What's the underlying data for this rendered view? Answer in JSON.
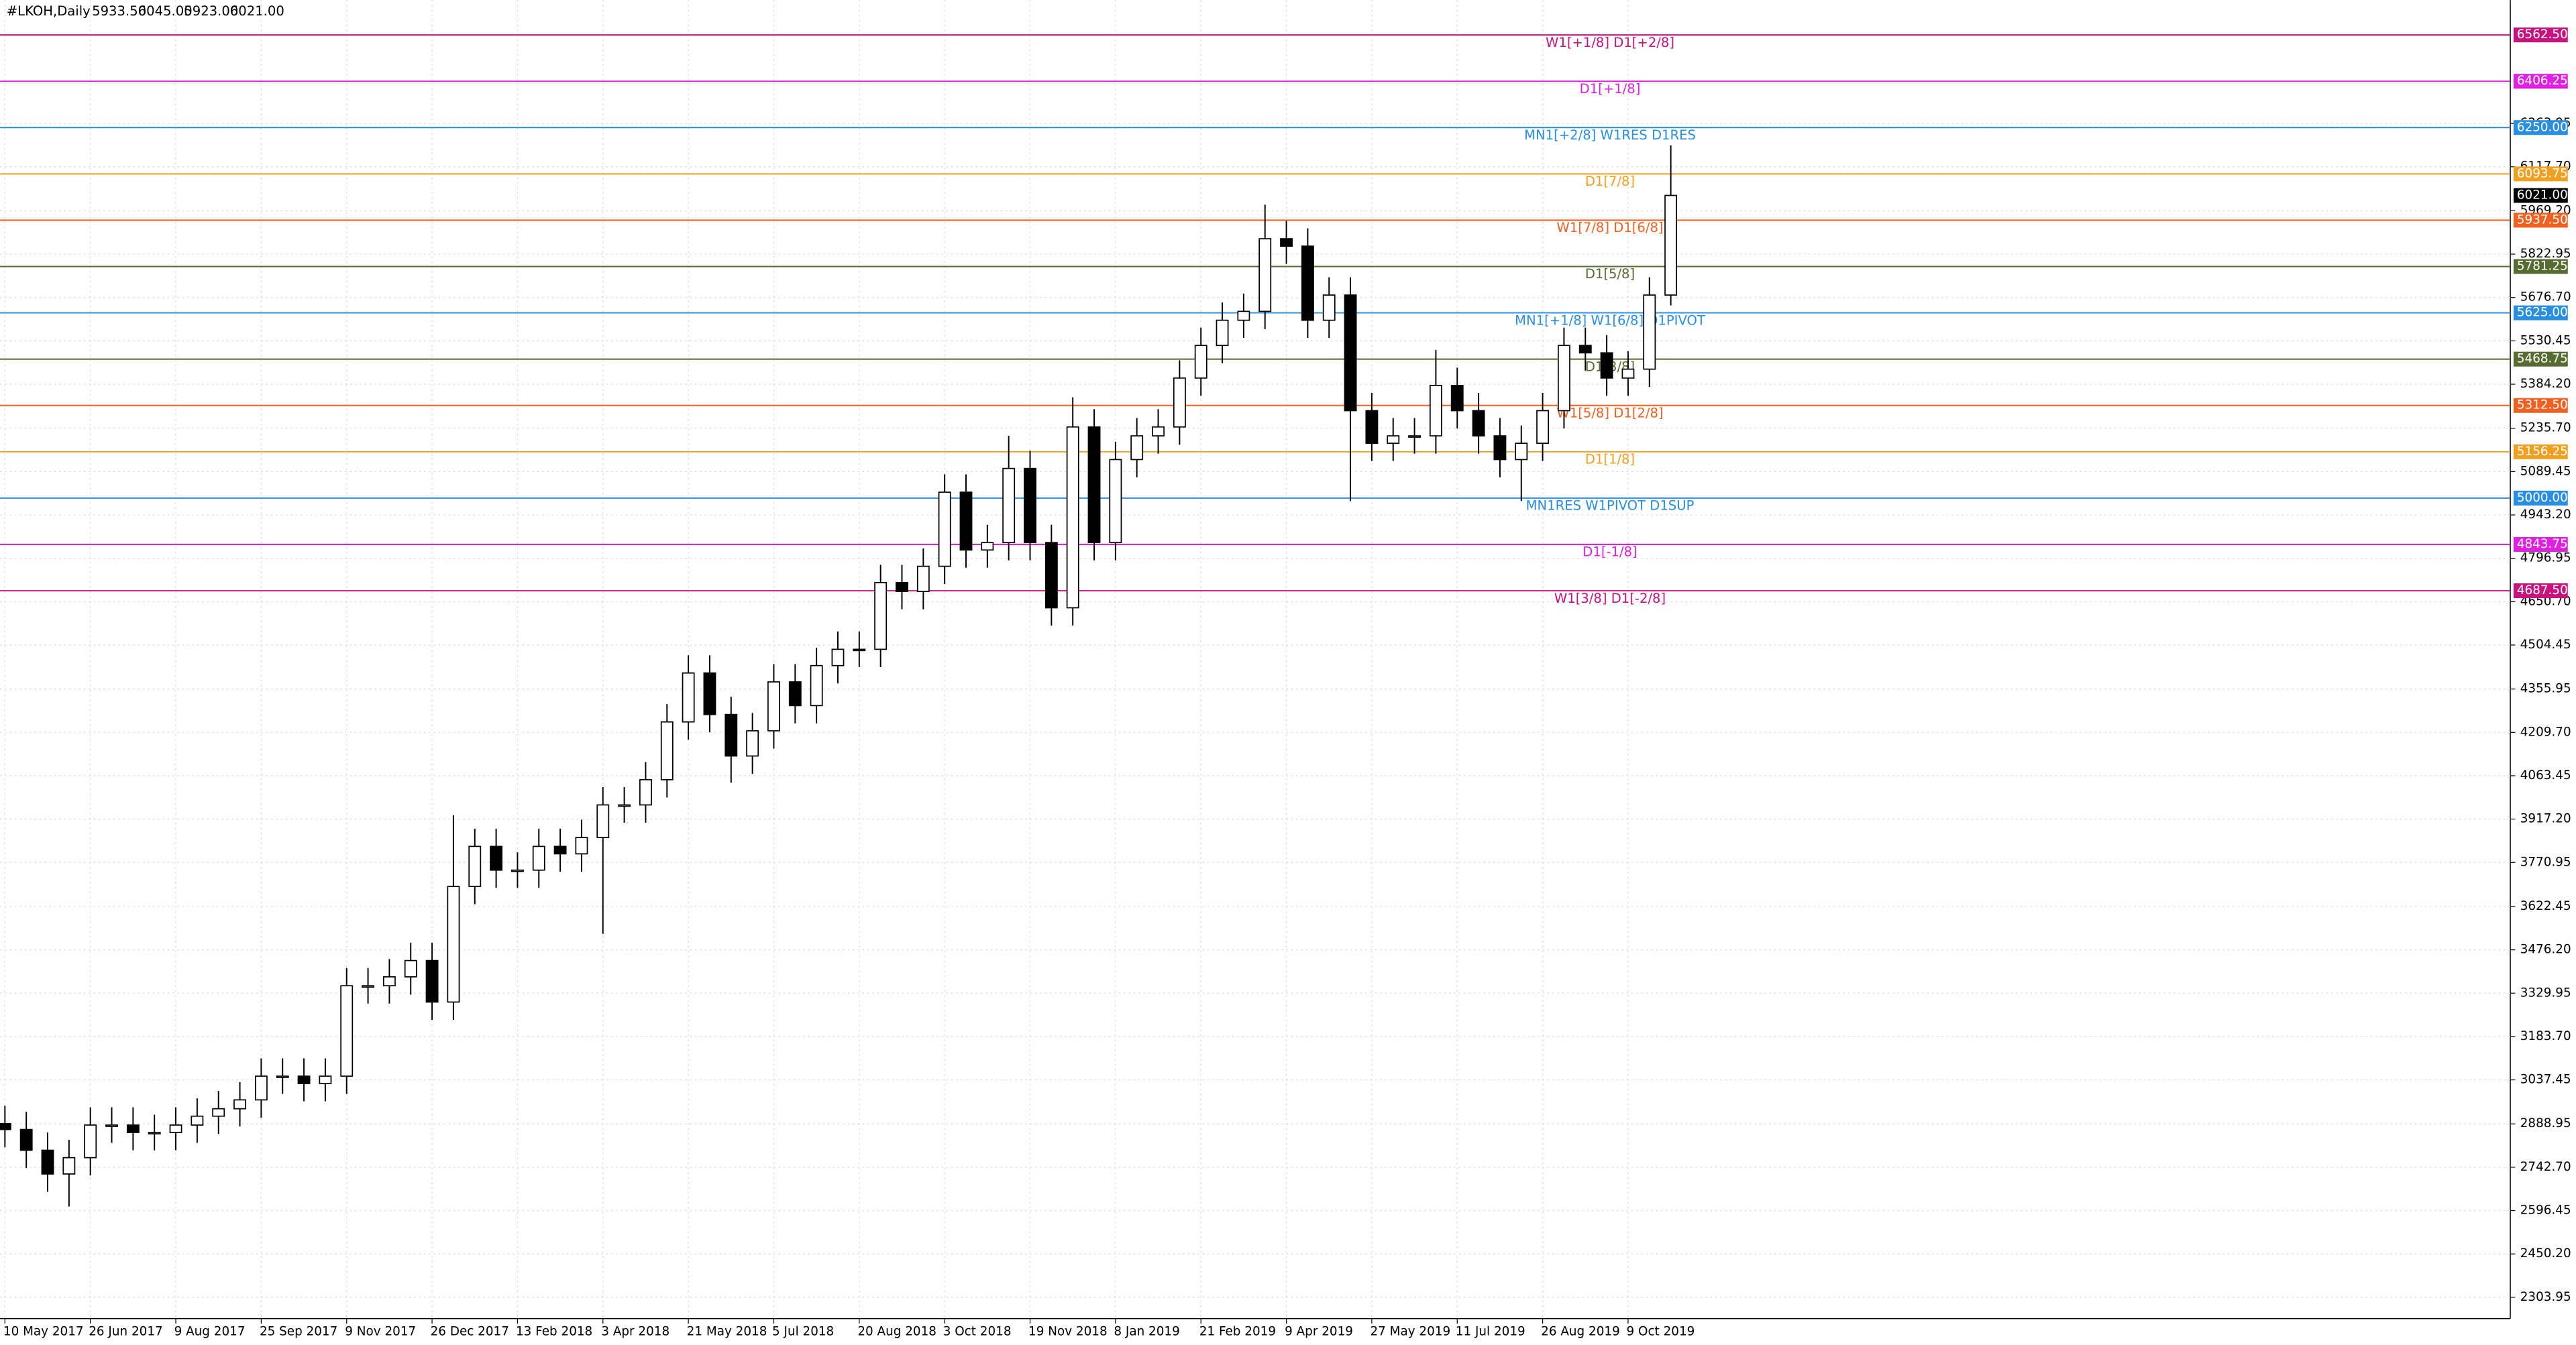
{
  "chart_data": {
    "type": "candlestick",
    "symbol": "#LKOH,Daily",
    "quote": [
      "5933.50",
      "6045.00",
      "5923.00",
      "6021.00"
    ],
    "categories": [
      "10 May 2017",
      null,
      null,
      null,
      "26 Jun 2017",
      null,
      null,
      null,
      "9 Aug 2017",
      null,
      null,
      null,
      "25 Sep 2017",
      null,
      null,
      null,
      "9 Nov 2017",
      null,
      null,
      null,
      "26 Dec 2017",
      null,
      null,
      null,
      "13 Feb 2018",
      null,
      null,
      null,
      "3 Apr 2018",
      null,
      null,
      null,
      "21 May 2018",
      null,
      null,
      null,
      "5 Jul 2018",
      null,
      null,
      null,
      "20 Aug 2018",
      null,
      null,
      null,
      "3 Oct 2018",
      null,
      null,
      null,
      "19 Nov 2018",
      null,
      null,
      null,
      "8 Jan 2019",
      null,
      null,
      null,
      "21 Feb 2019",
      null,
      null,
      null,
      "9 Apr 2019",
      null,
      null,
      null,
      "27 May 2019",
      null,
      null,
      null,
      "11 Jul 2019",
      null,
      null,
      null,
      "26 Aug 2019",
      null,
      null,
      null,
      "9 Oct 2019",
      null,
      null
    ],
    "open": [
      2890,
      2870,
      2800,
      2720,
      2775,
      2885,
      2885,
      2860,
      2860,
      2885,
      2915,
      2940,
      2970,
      3050,
      3050,
      3025,
      3050,
      3355,
      3355,
      3385,
      3440,
      3300,
      3690,
      3825,
      3745,
      3745,
      3825,
      3800,
      3855,
      3965,
      3965,
      4050,
      4245,
      4410,
      4270,
      4130,
      4215,
      4380,
      4300,
      4435,
      4490,
      4490,
      4715,
      4685,
      4770,
      5020,
      4825,
      4850,
      5100,
      4850,
      4630,
      5240,
      4850,
      5130,
      5210,
      5240,
      5405,
      5515,
      5600,
      5630,
      5875,
      5850,
      5600,
      5685,
      5295,
      5185,
      5210,
      5210,
      5380,
      5295,
      5210,
      5130,
      5185,
      5295,
      5515,
      5490,
      5405,
      5435,
      5685
    ],
    "high": [
      2950,
      2930,
      2860,
      2835,
      2945,
      2945,
      2945,
      2920,
      2945,
      2975,
      3000,
      3030,
      3110,
      3110,
      3110,
      3110,
      3415,
      3415,
      3445,
      3500,
      3500,
      3930,
      3885,
      3885,
      3805,
      3885,
      3885,
      3915,
      4025,
      4025,
      4110,
      4305,
      4470,
      4470,
      4330,
      4275,
      4440,
      4440,
      4495,
      4550,
      4550,
      4775,
      4775,
      4830,
      5080,
      5080,
      4910,
      5210,
      5160,
      4910,
      5340,
      5300,
      5190,
      5270,
      5300,
      5465,
      5575,
      5660,
      5690,
      5990,
      5935,
      5910,
      5745,
      5745,
      5355,
      5270,
      5270,
      5500,
      5440,
      5355,
      5270,
      5245,
      5355,
      5575,
      5575,
      5550,
      5495,
      5745,
      6190
    ],
    "low": [
      2810,
      2740,
      2660,
      2610,
      2715,
      2825,
      2800,
      2800,
      2800,
      2825,
      2855,
      2880,
      2910,
      2990,
      2965,
      2965,
      2990,
      3295,
      3295,
      3325,
      3240,
      3240,
      3630,
      3685,
      3685,
      3685,
      3740,
      3740,
      3530,
      3905,
      3905,
      3990,
      4185,
      4210,
      4040,
      4070,
      4155,
      4240,
      4240,
      4375,
      4430,
      4430,
      4625,
      4625,
      4710,
      4765,
      4765,
      4790,
      4790,
      4570,
      4570,
      4790,
      4790,
      5070,
      5150,
      5180,
      5345,
      5455,
      5540,
      5570,
      5790,
      5540,
      5540,
      4990,
      5125,
      5125,
      5150,
      5150,
      5235,
      5150,
      5070,
      4990,
      5125,
      5235,
      5430,
      5345,
      5345,
      5375,
      5650
    ],
    "close": [
      2870,
      2800,
      2720,
      2775,
      2885,
      2885,
      2860,
      2860,
      2885,
      2915,
      2940,
      2970,
      3050,
      3050,
      3025,
      3050,
      3355,
      3355,
      3385,
      3440,
      3300,
      3690,
      3825,
      3745,
      3745,
      3825,
      3800,
      3855,
      3965,
      3965,
      4050,
      4245,
      4410,
      4270,
      4130,
      4215,
      4380,
      4300,
      4435,
      4490,
      4490,
      4715,
      4685,
      4770,
      5020,
      4825,
      4850,
      5100,
      4850,
      4630,
      5240,
      4850,
      5130,
      5210,
      5240,
      5405,
      5515,
      5600,
      5630,
      5875,
      5850,
      5600,
      5685,
      5295,
      5185,
      5210,
      5210,
      5380,
      5295,
      5210,
      5130,
      5185,
      5295,
      5515,
      5490,
      5405,
      5435,
      5685,
      6021
    ],
    "ylim": [
      2232,
      6680
    ],
    "yticks": [
      {
        "value": 6263.95,
        "label": "6263.95"
      },
      {
        "value": 6117.7,
        "label": "6117.70"
      },
      {
        "value": 5969.2,
        "label": "5969.20"
      },
      {
        "value": 5822.95,
        "label": "5822.95"
      },
      {
        "value": 5676.7,
        "label": "5676.70"
      },
      {
        "value": 5530.45,
        "label": "5530.45"
      },
      {
        "value": 5384.2,
        "label": "5384.20"
      },
      {
        "value": 5235.7,
        "label": "5235.70"
      },
      {
        "value": 5089.45,
        "label": "5089.45"
      },
      {
        "value": 4943.2,
        "label": "4943.20"
      },
      {
        "value": 4796.95,
        "label": "4796.95"
      },
      {
        "value": 4650.7,
        "label": "4650.70"
      },
      {
        "value": 4504.45,
        "label": "4504.45"
      },
      {
        "value": 4355.95,
        "label": "4355.95"
      },
      {
        "value": 4209.7,
        "label": "4209.70"
      },
      {
        "value": 4063.45,
        "label": "4063.45"
      },
      {
        "value": 3917.2,
        "label": "3917.20"
      },
      {
        "value": 3770.95,
        "label": "3770.95"
      },
      {
        "value": 3622.45,
        "label": "3622.45"
      },
      {
        "value": 3476.2,
        "label": "3476.20"
      },
      {
        "value": 3329.95,
        "label": "3329.95"
      },
      {
        "value": 3183.7,
        "label": "3183.70"
      },
      {
        "value": 3037.45,
        "label": "3037.45"
      },
      {
        "value": 2888.95,
        "label": "2888.95"
      },
      {
        "value": 2742.7,
        "label": "2742.70"
      },
      {
        "value": 2596.45,
        "label": "2596.45"
      },
      {
        "value": 2450.2,
        "label": "2450.20"
      },
      {
        "value": 2303.95,
        "label": "2303.95"
      }
    ],
    "grid": true,
    "levels": [
      {
        "value": 6562.5,
        "label": "6562.50",
        "text": "W1[+1/8] D1[+2/8]",
        "color": "#c8127e"
      },
      {
        "value": 6406.25,
        "label": "6406.25",
        "text": "D1[+1/8]",
        "color": "#e020e0"
      },
      {
        "value": 6250,
        "label": "6250.00",
        "text": "MN1[+2/8] W1RES D1RES",
        "color": "#2a8ee0"
      },
      {
        "value": 6093.75,
        "label": "6093.75",
        "text": "D1[7/8]",
        "color": "#f0a020"
      },
      {
        "value": 5937.5,
        "label": "5937.50",
        "text": "W1[7/8] D1[6/8]",
        "color": "#f06020"
      },
      {
        "value": 5781.25,
        "label": "5781.25",
        "text": "D1[5/8]",
        "color": "#566b2f"
      },
      {
        "value": 5625,
        "label": "5625.00",
        "text": "MN1[+1/8] W1[6/8] D1PIVOT",
        "color": "#2a8ee0"
      },
      {
        "value": 5468.75,
        "label": "5468.75",
        "text": "D1[3/8]",
        "color": "#566b2f"
      },
      {
        "value": 5312.5,
        "label": "5312.50",
        "text": "W1[5/8] D1[2/8]",
        "color": "#f06020"
      },
      {
        "value": 5156.25,
        "label": "5156.25",
        "text": "D1[1/8]",
        "color": "#f0a020"
      },
      {
        "value": 5000,
        "label": "5000.00",
        "text": "MN1RES W1PIVOT D1SUP",
        "color": "#2a8ee0"
      },
      {
        "value": 4843.75,
        "label": "4843.75",
        "text": "D1[-1/8]",
        "color": "#e020e0"
      },
      {
        "value": 4687.5,
        "label": "4687.50",
        "text": "W1[3/8] D1[-2/8]",
        "color": "#c8127e"
      }
    ],
    "last_price": {
      "value": 6021,
      "label": "6021.00"
    }
  }
}
